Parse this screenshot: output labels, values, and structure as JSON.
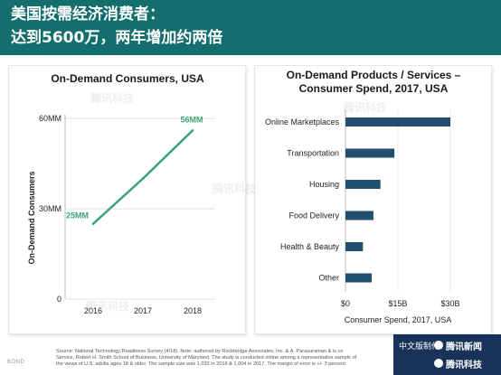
{
  "header": {
    "line1": "美国按需经济消费者：",
    "line2": "达到5600万，两年增加约两倍"
  },
  "colors": {
    "header_bg": "#146e6e",
    "line_color": "#3aa57a",
    "bar_color": "#1f4e6e",
    "badge_bg": "#18325a"
  },
  "chart_data": [
    {
      "type": "line",
      "title": "On-Demand Consumers, USA",
      "ylabel": "On-Demand Consumers",
      "xlabel": "",
      "x": [
        "2016",
        "2017",
        "2018"
      ],
      "values": [
        25,
        40,
        56
      ],
      "ylim": [
        0,
        60
      ],
      "y_ticks": [
        0,
        30,
        60
      ],
      "y_tick_labels": [
        "0",
        "30MM",
        "60MM"
      ],
      "data_labels": [
        {
          "index": 0,
          "text": "25MM"
        },
        {
          "index": 2,
          "text": "56MM"
        }
      ],
      "grid": true
    },
    {
      "type": "bar",
      "orientation": "horizontal",
      "title_lines": [
        "On-Demand Products / Services –",
        "Consumer Spend, 2017, USA"
      ],
      "xlabel": "Consumer Spend, 2017, USA",
      "categories": [
        "Online Marketplaces",
        "Transportation",
        "Housing",
        "Food Delivery",
        "Health & Beauty",
        "Other"
      ],
      "values": [
        30,
        14,
        10,
        8,
        5,
        7.5
      ],
      "xlim": [
        0,
        30
      ],
      "x_ticks": [
        0,
        15,
        30
      ],
      "x_tick_labels": [
        "$0",
        "$15B",
        "$30B"
      ],
      "grid": true
    }
  ],
  "source": {
    "line1": "Source: National Technology Readiness Survey (4/18). Note: authored by Rockbridge Associates, Inc. & A. Parasuraman & is co",
    "line2": "Service, Robert H. Smith School of Business, University of Maryland. The study is conducted online among a representative sample of",
    "line3": "the views of U.S. adults ages 18 & older. The sample size was 1,032 in 2016 & 1,004 in 2017. The margin of error is +/- 3 percent"
  },
  "brand_small": "BOND",
  "badge": {
    "prefix": "中文版制作：",
    "name1": "腾讯新闻",
    "name2": "腾讯科技"
  },
  "watermark_text": "腾讯科技"
}
